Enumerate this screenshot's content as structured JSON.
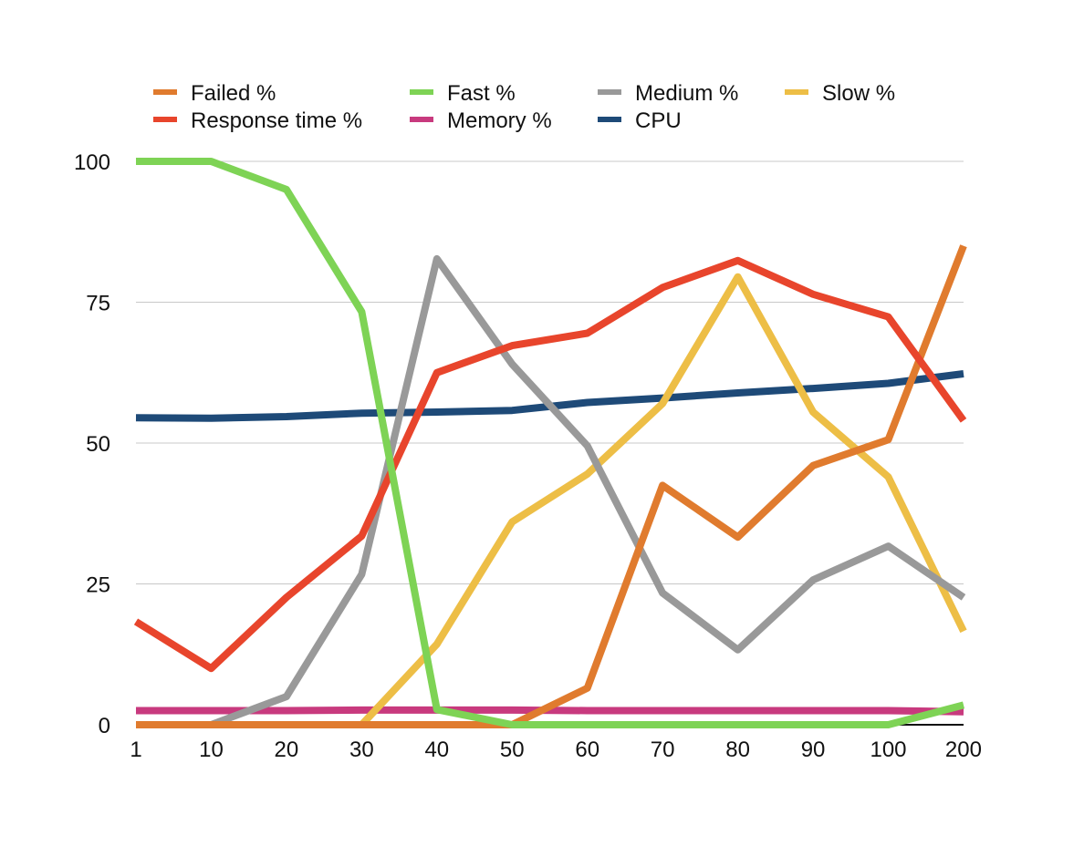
{
  "chart_data": {
    "type": "line",
    "title": "",
    "xlabel": "",
    "ylabel": "",
    "categories": [
      "1",
      "10",
      "20",
      "30",
      "40",
      "50",
      "60",
      "70",
      "80",
      "90",
      "100",
      "200"
    ],
    "yticks": [
      "0",
      "25",
      "50",
      "75",
      "100"
    ],
    "ylim": [
      0,
      100
    ],
    "grid": true,
    "legend_position": "top",
    "series": [
      {
        "name": "Failed %",
        "color": "#E07B2E",
        "values": [
          0,
          0,
          0,
          0,
          0,
          0,
          6.5,
          42.5,
          33.3,
          46,
          50.6,
          85
        ]
      },
      {
        "name": "Fast %",
        "color": "#7ED355",
        "values": [
          100,
          100,
          95,
          73.3,
          2.7,
          0,
          0,
          0,
          0,
          0,
          0,
          3.5
        ]
      },
      {
        "name": "Medium %",
        "color": "#999999",
        "values": [
          0,
          0,
          5,
          26.7,
          82.7,
          64,
          49.5,
          23.4,
          13.3,
          25.7,
          31.7,
          22.6
        ]
      },
      {
        "name": "Slow %",
        "color": "#EDBE46",
        "values": [
          0,
          0,
          0,
          0,
          14.3,
          36,
          44.5,
          57,
          79.5,
          55.5,
          44,
          16.6
        ]
      },
      {
        "name": "Response time %",
        "color": "#E8452C",
        "values": [
          18.3,
          10,
          22.6,
          33.5,
          62.5,
          67.3,
          69.5,
          77.6,
          82.4,
          76.4,
          72.4,
          54
        ]
      },
      {
        "name": "Memory %",
        "color": "#C83A7E",
        "values": [
          2.5,
          2.5,
          2.5,
          2.6,
          2.6,
          2.6,
          2.5,
          2.5,
          2.5,
          2.5,
          2.5,
          2.3
        ]
      },
      {
        "name": "CPU",
        "color": "#1E4A78",
        "values": [
          54.5,
          54.4,
          54.7,
          55.3,
          55.5,
          55.8,
          57.2,
          58,
          58.9,
          59.7,
          60.6,
          62.3
        ]
      }
    ]
  }
}
